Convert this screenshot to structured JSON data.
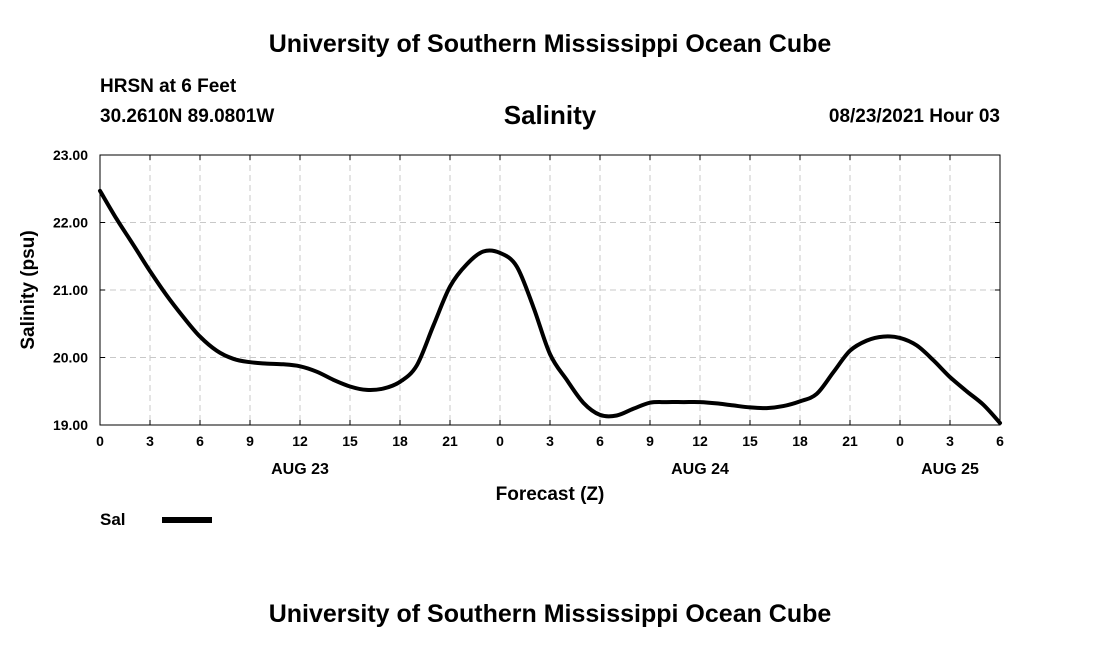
{
  "header": {
    "title": "University of Southern Mississippi Ocean Cube",
    "station": "HRSN at 6 Feet",
    "coords": "30.2610N  89.0801W",
    "variable": "Salinity",
    "forecast_time": "08/23/2021 Hour 03"
  },
  "footer": {
    "title": "University of Southern Mississippi Ocean Cube"
  },
  "legend": {
    "label": "Sal"
  },
  "colors": {
    "line": "#000000",
    "grid": "#c8c8c8",
    "frame": "#000000"
  },
  "chart_data": {
    "type": "line",
    "title": "Salinity",
    "xlabel": "Forecast (Z)",
    "ylabel": "Salinity (psu)",
    "ylim": [
      19.0,
      23.0
    ],
    "xlim": [
      0,
      54
    ],
    "grid": true,
    "legend_position": "bottom-left",
    "y_ticks": [
      19.0,
      20.0,
      21.0,
      22.0,
      23.0
    ],
    "y_tick_labels": [
      "19.00",
      "20.00",
      "21.00",
      "22.00",
      "23.00"
    ],
    "x_ticks": [
      0,
      3,
      6,
      9,
      12,
      15,
      18,
      21,
      24,
      27,
      30,
      33,
      36,
      39,
      42,
      45,
      48,
      51,
      54
    ],
    "x_tick_labels": [
      "0",
      "3",
      "6",
      "9",
      "12",
      "15",
      "18",
      "21",
      "0",
      "3",
      "6",
      "9",
      "12",
      "15",
      "18",
      "21",
      "0",
      "3",
      "6"
    ],
    "date_labels": [
      {
        "x": 12,
        "label": "AUG 23"
      },
      {
        "x": 36,
        "label": "AUG 24"
      },
      {
        "x": 51,
        "label": "AUG 25"
      }
    ],
    "series": [
      {
        "name": "Sal",
        "x": [
          0,
          1,
          2,
          3,
          4,
          5,
          6,
          7,
          8,
          9,
          10,
          11,
          12,
          13,
          14,
          15,
          16,
          17,
          18,
          19,
          20,
          21,
          22,
          23,
          24,
          25,
          26,
          27,
          28,
          29,
          30,
          31,
          32,
          33,
          34,
          35,
          36,
          37,
          38,
          39,
          40,
          41,
          42,
          43,
          44,
          45,
          46,
          47,
          48,
          49,
          50,
          51,
          52,
          53,
          54
        ],
        "values": [
          22.47,
          22.05,
          21.67,
          21.28,
          20.92,
          20.6,
          20.31,
          20.1,
          19.98,
          19.93,
          19.91,
          19.9,
          19.87,
          19.79,
          19.67,
          19.57,
          19.52,
          19.54,
          19.64,
          19.88,
          20.47,
          21.05,
          21.38,
          21.57,
          21.55,
          21.35,
          20.75,
          20.05,
          19.67,
          19.33,
          19.15,
          19.14,
          19.24,
          19.33,
          19.34,
          19.34,
          19.34,
          19.32,
          19.29,
          19.26,
          19.25,
          19.28,
          19.35,
          19.46,
          19.78,
          20.1,
          20.25,
          20.31,
          20.29,
          20.18,
          19.96,
          19.71,
          19.5,
          19.3,
          19.03
        ]
      }
    ]
  }
}
